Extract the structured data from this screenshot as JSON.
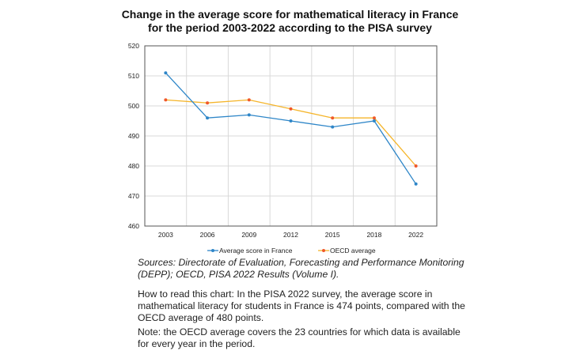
{
  "chart_data": {
    "type": "line",
    "title": [
      "Change in the average score for mathematical literacy in France",
      "for the period 2003-2022 according to the PISA survey"
    ],
    "categories": [
      "2003",
      "2006",
      "2009",
      "2012",
      "2015",
      "2018",
      "2022"
    ],
    "ylim": [
      460,
      520
    ],
    "yticks": [
      "460",
      "470",
      "480",
      "490",
      "500",
      "510",
      "520"
    ],
    "grid": true,
    "legend_placement": "bottom",
    "series": [
      {
        "name": "Average score in France",
        "values": [
          511,
          496,
          497,
          495,
          493,
          495,
          474
        ],
        "color": "#2e86c8",
        "marker_color": "#2e86c8"
      },
      {
        "name": "OECD average",
        "values": [
          502,
          501,
          502,
          499,
          496,
          496,
          480
        ],
        "color": "#f5b52a",
        "marker_color": "#f0582a"
      }
    ]
  },
  "notes": {
    "sources": "Sources: Directorate of Evaluation, Forecasting and Performance Monitoring (DEPP); OECD, PISA 2022 Results (Volume I).",
    "how_to_read": "How to read this chart: In the PISA 2022 survey, the average score in mathematical literacy for students in France is 474 points, compared with the OECD average of 480 points.",
    "note": "Note: the OECD average covers the 23 countries for which data is available for every year in the period."
  }
}
